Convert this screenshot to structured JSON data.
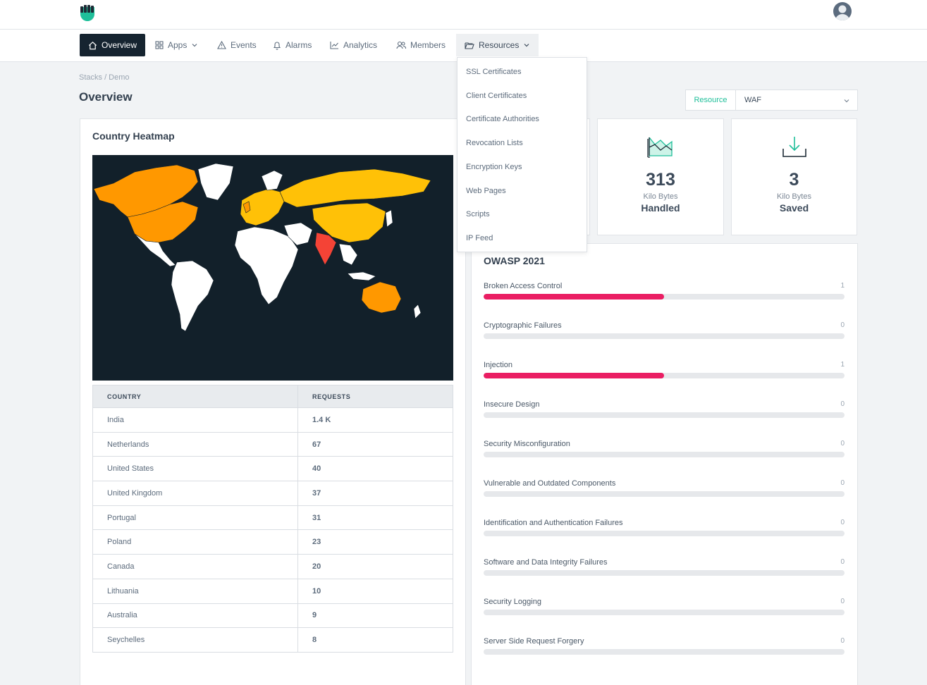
{
  "nav": {
    "items": [
      {
        "label": "Overview",
        "icon": "home-icon"
      },
      {
        "label": "Apps",
        "icon": "grid-icon"
      },
      {
        "label": "Events",
        "icon": "warning-icon"
      },
      {
        "label": "Alarms",
        "icon": "bell-icon"
      },
      {
        "label": "Analytics",
        "icon": "chart-line-icon"
      },
      {
        "label": "Members",
        "icon": "users-icon"
      },
      {
        "label": "Resources",
        "icon": "folder-open-icon"
      }
    ]
  },
  "resources_menu": {
    "items": [
      "SSL Certificates",
      "Client Certificates",
      "Certificate Authorities",
      "Revocation Lists",
      "Encryption Keys",
      "Web Pages",
      "Scripts",
      "IP Feed"
    ]
  },
  "breadcrumb": "Stacks / Demo",
  "page_title": "Overview",
  "resource_select": {
    "label": "Resource",
    "value": "WAF"
  },
  "heatmap": {
    "title": "Country Heatmap",
    "columns": [
      "COUNTRY",
      "REQUESTS"
    ],
    "rows": [
      {
        "country": "India",
        "requests": "1.4 K"
      },
      {
        "country": "Netherlands",
        "requests": "67"
      },
      {
        "country": "United States",
        "requests": "40"
      },
      {
        "country": "United Kingdom",
        "requests": "37"
      },
      {
        "country": "Portugal",
        "requests": "31"
      },
      {
        "country": "Poland",
        "requests": "23"
      },
      {
        "country": "Canada",
        "requests": "20"
      },
      {
        "country": "Lithuania",
        "requests": "10"
      },
      {
        "country": "Australia",
        "requests": "9"
      },
      {
        "country": "Seychelles",
        "requests": "8"
      }
    ]
  },
  "stats": [
    {
      "value": "313",
      "unit": "Kilo Bytes",
      "label": "Handled",
      "icon": "map-chart-icon"
    },
    {
      "value": "3",
      "unit": "Kilo Bytes",
      "label": "Saved",
      "icon": "download-icon"
    }
  ],
  "owasp": {
    "title": "OWASP 2021",
    "max": 2,
    "items": [
      {
        "name": "Broken Access Control",
        "count": 1
      },
      {
        "name": "Cryptographic Failures",
        "count": 0
      },
      {
        "name": "Injection",
        "count": 1
      },
      {
        "name": "Insecure Design",
        "count": 0
      },
      {
        "name": "Security Misconfiguration",
        "count": 0
      },
      {
        "name": "Vulnerable and Outdated Components",
        "count": 0
      },
      {
        "name": "Identification and Authentication Failures",
        "count": 0
      },
      {
        "name": "Software and Data Integrity Failures",
        "count": 0
      },
      {
        "name": "Security Logging",
        "count": 0
      },
      {
        "name": "Server Side Request Forgery",
        "count": 0
      }
    ]
  },
  "colors": {
    "accent": "#1fbf9a",
    "nav_active": "#162430",
    "bar_fill": "#ea1e63",
    "map_bg": "#12202a",
    "heat_high": "#f44336",
    "heat_mid": "#ff9800",
    "heat_low": "#ffc107"
  }
}
